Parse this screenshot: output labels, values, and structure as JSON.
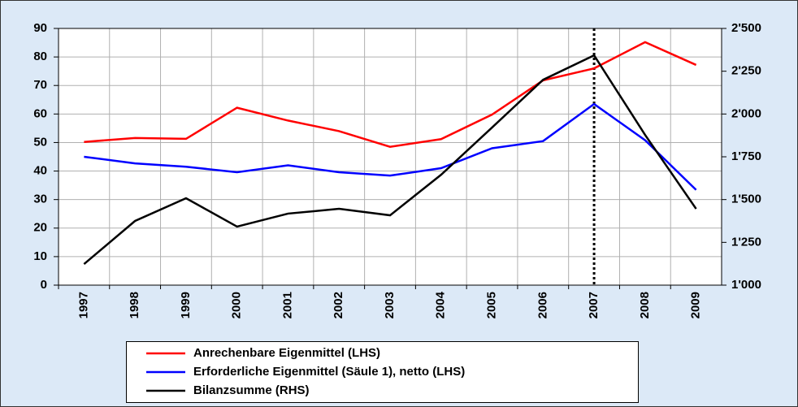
{
  "chart_data": {
    "type": "line",
    "categories": [
      "1997",
      "1998",
      "1999",
      "2000",
      "2001",
      "2002",
      "2003",
      "2004",
      "2005",
      "2006",
      "2007",
      "2008",
      "2009"
    ],
    "series": [
      {
        "name": "Anrechenbare Eigenmittel (LHS)",
        "color": "#ff0000",
        "values": [
          50.2,
          51.6,
          51.3,
          62.2,
          57.7,
          54,
          48.5,
          51.2,
          59.8,
          71.8,
          76,
          85.2,
          77.2
        ]
      },
      {
        "name": "Erforderliche Eigenmittel (Säule 1), netto (LHS)",
        "color": "#0000ff",
        "values": [
          45,
          42.7,
          41.5,
          39.6,
          42,
          39.6,
          38.4,
          41,
          48,
          50.5,
          63.5,
          50.8,
          33.4
        ]
      },
      {
        "name": "Bilanzsumme (RHS)",
        "color": "#000000",
        "axis": "y2",
        "values": [
          1123,
          1375,
          1508,
          1342,
          1418,
          1446,
          1408,
          1645,
          1921,
          2200,
          2343,
          1878,
          1446
        ]
      }
    ],
    "ylim": [
      0,
      90
    ],
    "yticks": [
      0,
      10,
      20,
      30,
      40,
      50,
      60,
      70,
      80,
      90
    ],
    "y2lim": [
      1000,
      2500
    ],
    "y2ticks": [
      {
        "value": 1000,
        "label": "1'000"
      },
      {
        "value": 1250,
        "label": "1'250"
      },
      {
        "value": 1500,
        "label": "1'500"
      },
      {
        "value": 1750,
        "label": "1'750"
      },
      {
        "value": 2000,
        "label": "2'000"
      },
      {
        "value": 2250,
        "label": "2'250"
      },
      {
        "value": 2500,
        "label": "2'500"
      }
    ],
    "grid": true,
    "vertical_marker": "2007",
    "legend": "bottom"
  }
}
